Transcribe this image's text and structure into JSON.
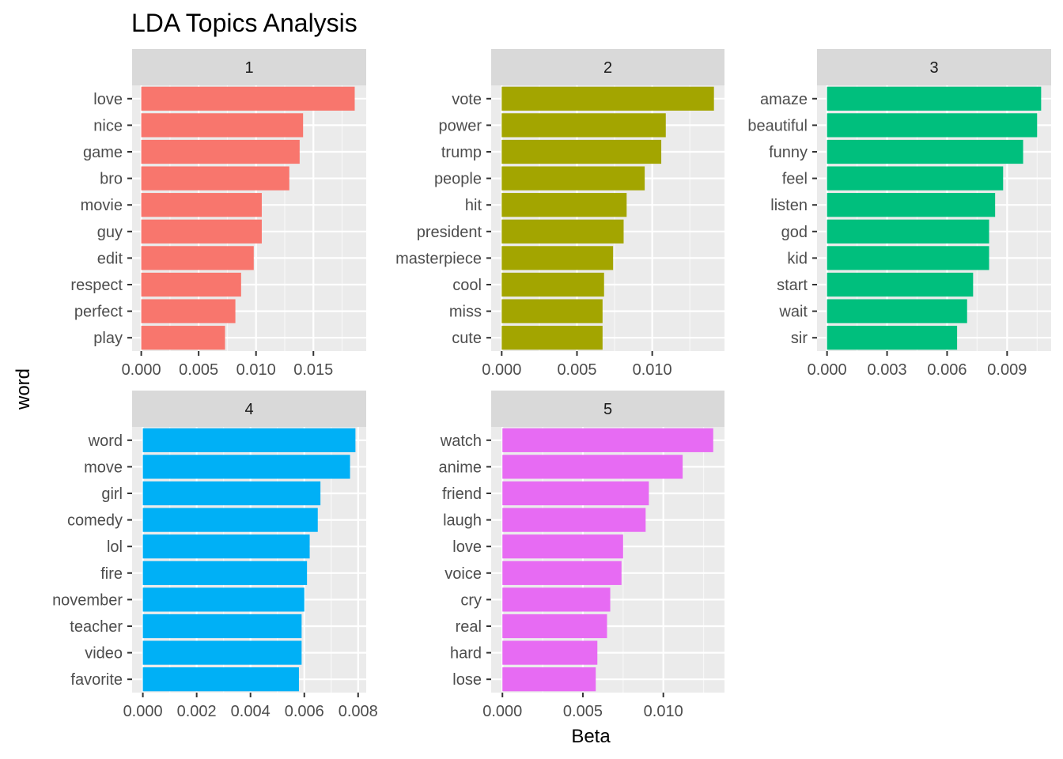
{
  "chart_data": {
    "type": "bar",
    "orientation": "horizontal",
    "title": "LDA Topics Analysis",
    "xlabel": "Beta",
    "ylabel": "word",
    "grid": true,
    "legend": "none",
    "panels": [
      {
        "label": "1",
        "color": "#F8766D",
        "categories": [
          "love",
          "nice",
          "game",
          "bro",
          "movie",
          "guy",
          "edit",
          "respect",
          "perfect",
          "play"
        ],
        "values": [
          0.0186,
          0.0141,
          0.0138,
          0.0129,
          0.0105,
          0.0105,
          0.0098,
          0.0087,
          0.0082,
          0.0073
        ],
        "xlim": [
          -0.0008,
          0.0196
        ],
        "ticks": [
          0.0,
          0.005,
          0.01,
          0.015
        ],
        "tick_labels": [
          "0.000",
          "0.005",
          "0.010",
          "0.015"
        ]
      },
      {
        "label": "2",
        "color": "#A3A500",
        "categories": [
          "vote",
          "power",
          "trump",
          "people",
          "hit",
          "president",
          "masterpiece",
          "cool",
          "miss",
          "cute"
        ],
        "values": [
          0.0141,
          0.0109,
          0.0106,
          0.0095,
          0.0083,
          0.0081,
          0.0074,
          0.0068,
          0.0067,
          0.0067
        ],
        "xlim": [
          -0.0007,
          0.0148
        ],
        "ticks": [
          0.0,
          0.005,
          0.01
        ],
        "tick_labels": [
          "0.000",
          "0.005",
          "0.010"
        ]
      },
      {
        "label": "3",
        "color": "#00BF7D",
        "categories": [
          "amaze",
          "beautiful",
          "funny",
          "feel",
          "listen",
          "god",
          "kid",
          "start",
          "wait",
          "sir"
        ],
        "values": [
          0.0107,
          0.0105,
          0.0098,
          0.0088,
          0.0084,
          0.0081,
          0.0081,
          0.0073,
          0.007,
          0.0065
        ],
        "xlim": [
          -0.0005,
          0.0112
        ],
        "ticks": [
          0.0,
          0.003,
          0.006,
          0.009
        ],
        "tick_labels": [
          "0.000",
          "0.003",
          "0.006",
          "0.009"
        ]
      },
      {
        "label": "4",
        "color": "#00B0F6",
        "categories": [
          "word",
          "move",
          "girl",
          "comedy",
          "lol",
          "fire",
          "november",
          "teacher",
          "video",
          "favorite"
        ],
        "values": [
          0.0079,
          0.0077,
          0.0066,
          0.0065,
          0.0062,
          0.0061,
          0.006,
          0.0059,
          0.0059,
          0.0058
        ],
        "xlim": [
          -0.0004,
          0.0083
        ],
        "ticks": [
          0.0,
          0.002,
          0.004,
          0.006,
          0.008
        ],
        "tick_labels": [
          "0.000",
          "0.002",
          "0.004",
          "0.006",
          "0.008"
        ]
      },
      {
        "label": "5",
        "color": "#E76BF3",
        "categories": [
          "watch",
          "anime",
          "friend",
          "laugh",
          "love",
          "voice",
          "cry",
          "real",
          "hard",
          "lose"
        ],
        "values": [
          0.0131,
          0.0112,
          0.0091,
          0.0089,
          0.0075,
          0.0074,
          0.0067,
          0.0065,
          0.0059,
          0.0058
        ],
        "xlim": [
          -0.0007,
          0.0138
        ],
        "ticks": [
          0.0,
          0.005,
          0.01
        ],
        "tick_labels": [
          "0.000",
          "0.005",
          "0.010"
        ]
      }
    ]
  }
}
